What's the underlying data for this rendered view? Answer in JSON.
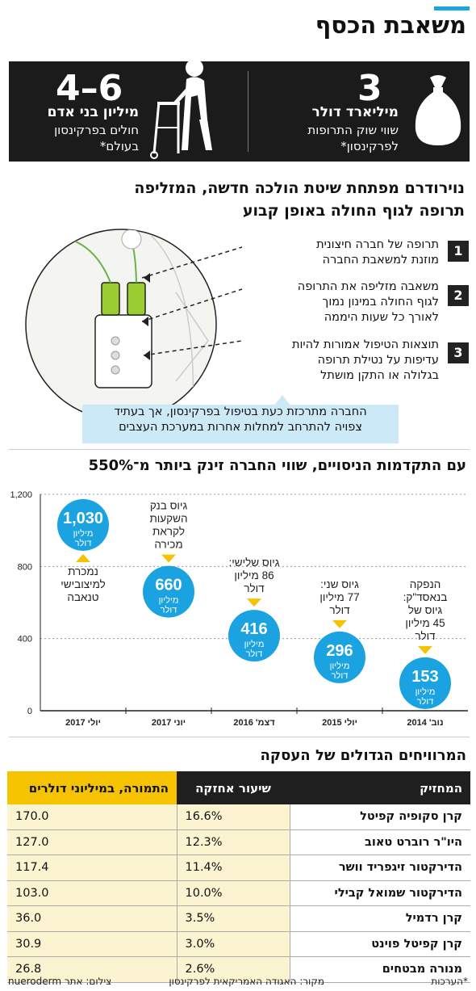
{
  "title": "משאבת הכסף",
  "stats": {
    "market": {
      "number": "3",
      "label": "מיליארד דולר",
      "sub1": "שווי שוק התרופות",
      "sub2": "לפרקינסון*"
    },
    "patients": {
      "number": "4–6",
      "label": "מיליון בני אדם",
      "sub1": "חולים בפרקינסון",
      "sub2": "בעולם*"
    }
  },
  "process": {
    "title_line1": "נוירודרם מפתחת שיטת הולכה חדשה, המזליפה",
    "title_line2": "תרופה לגוף החולה באופן קבוע",
    "steps": [
      {
        "num": "1",
        "line1": "תרופה של חברה חיצונית",
        "line2": "מוזנת למשאבת החברה",
        "line3": ""
      },
      {
        "num": "2",
        "line1": "משאבה מזליפה את התרופה",
        "line2": "לגוף החולה במינון נמוך",
        "line3": "לאורך כל שעות היממה"
      },
      {
        "num": "3",
        "line1": "תוצאות הטיפול אמורות להיות",
        "line2": "עדיפות על נטילת תרופה",
        "line3": "בגלולה או התקן מושתל"
      }
    ],
    "note_line1": "החברה מתרכזת כעת בטיפול בפרקינסון, אך בעתיד",
    "note_line2": "צפויה להתרחב למחלות אחרות במערכת העצבים"
  },
  "chart": {
    "title": "עם התקדמות הניסויים, שווי החברה זינק ביותר מ־550%"
  },
  "chart_data": {
    "type": "scatter",
    "title": "עם התקדמות הניסויים, שווי החברה זינק ביותר מ־550%",
    "xlabel": "",
    "ylabel": "",
    "unit_line1": "מיליון",
    "unit_line2": "דולר",
    "ylim": [
      0,
      1200
    ],
    "y_ticks": [
      "0",
      "400",
      "800",
      "1,200"
    ],
    "categories": [
      "נוב' 2014",
      "יולי 2015",
      "דצמ' 2016",
      "יוני 2017",
      "יולי 2017"
    ],
    "values": [
      153,
      296,
      416,
      660,
      1030
    ],
    "value_labels": [
      "153",
      "296",
      "416",
      "660",
      "1,030"
    ],
    "annotations": [
      [
        "הנפקה",
        "בנאסד\"ק:",
        "גיוס של",
        "45 מיליון",
        "דולר"
      ],
      [
        "גיוס שני:",
        "77 מיליון",
        "דולר"
      ],
      [
        "גיוס שלישי:",
        "86 מיליון",
        "דולר"
      ],
      [
        "גיוס בנק",
        "השקעות",
        "לקראת",
        "מכירה"
      ],
      [
        "נמכרת",
        "למיצובישי",
        "טנאבה"
      ]
    ],
    "grid": true,
    "colors": {
      "bubble": "#1aa3e0",
      "marker": "#f6c300",
      "axis": "#222"
    }
  },
  "table": {
    "title": "המרוויחים הגדולים של העסקה",
    "headers": {
      "holder": "המחזיק",
      "pct": "שיעור אחזקה",
      "val": "התמורה, במיליוני דולרים"
    },
    "rows": [
      {
        "holder": "קרן סקופיה קפיטל",
        "pct": "16.6%",
        "val": "170.0"
      },
      {
        "holder": "היו\"ר רוברט טאוב",
        "pct": "12.3%",
        "val": "127.0"
      },
      {
        "holder": "הדירקטור זיגפריד וושר",
        "pct": "11.4%",
        "val": "117.4"
      },
      {
        "holder": "הדירקטור שמואל קבילי",
        "pct": "10.0%",
        "val": "103.0"
      },
      {
        "holder": "קרן רדמיל",
        "pct": "3.5%",
        "val": "36.0"
      },
      {
        "holder": "קרן קפיטל פוינט",
        "pct": "3.0%",
        "val": "30.9"
      },
      {
        "holder": "מנורה מבטחים",
        "pct": "2.6%",
        "val": "26.8"
      }
    ]
  },
  "footer": {
    "note": "*הערכות",
    "source": "מקור: האגודה האמריקאית לפרקינסון",
    "credit": "צילום: אתר nueroderm"
  }
}
